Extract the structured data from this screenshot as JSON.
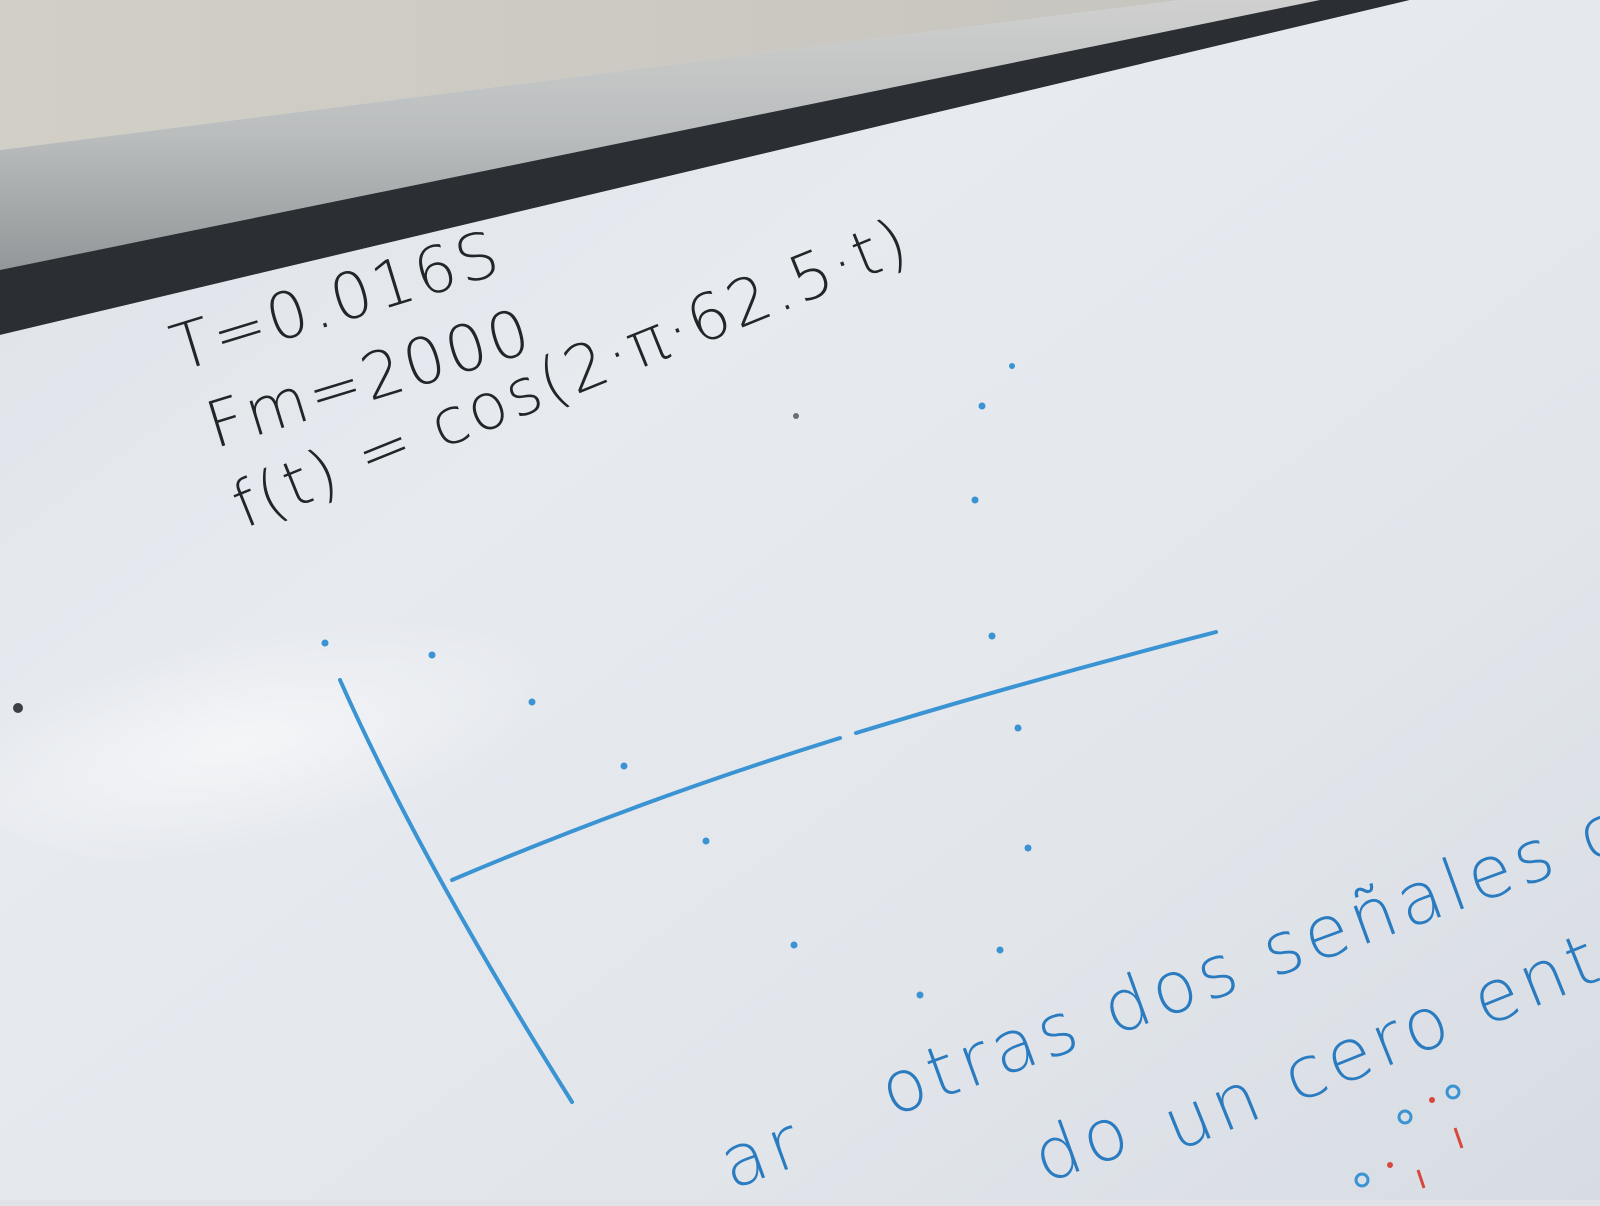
{
  "formulas": {
    "line1": "T=0.016S",
    "line2": "Fm=2000",
    "line3": "f(t) = cos(2·π·62.5·t)"
  },
  "notes": {
    "line1": "otras dos señales con",
    "line2": "un cero entre",
    "line2_fragment": "do",
    "line3_fragment": "ar"
  },
  "colors": {
    "marker_black": "#232629",
    "marker_blue": "#3a93d2",
    "marker_red": "#d8473e",
    "board": "#e6e9ee"
  }
}
